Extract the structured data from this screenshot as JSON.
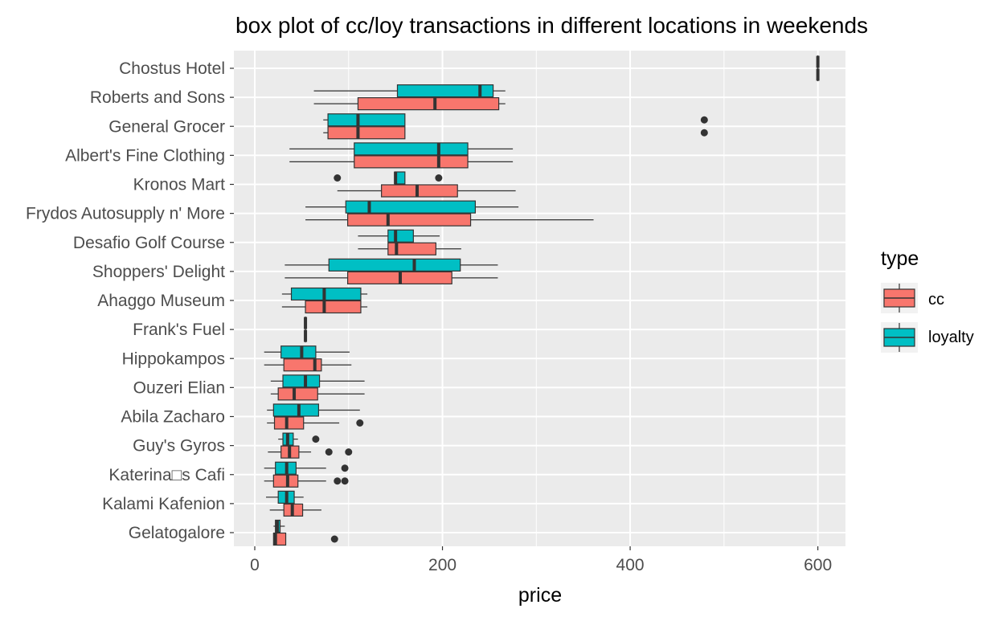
{
  "chart_data": {
    "type": "boxplot",
    "orientation": "horizontal",
    "title": "box plot of cc/loy transactions in different locations in weekends",
    "xlabel": "price",
    "ylabel": "",
    "xlim": [
      -5,
      630
    ],
    "x_ticks": [
      0,
      200,
      400,
      600
    ],
    "grid": true,
    "legend": {
      "title": "type",
      "position": "right"
    },
    "series": [
      {
        "name": "cc",
        "color": "#F8766D"
      },
      {
        "name": "loyalty",
        "color": "#00BFC4"
      }
    ],
    "categories": [
      "Chostus Hotel",
      "Roberts and Sons",
      "General Grocer",
      "Albert's Fine Clothing",
      "Kronos Mart",
      "Frydos Autosupply n' More",
      "Desafio Golf Course",
      "Shoppers' Delight",
      "Ahaggo Museum",
      "Frank's Fuel",
      "Hippokampos",
      "Ouzeri Elian",
      "Abila Zacharo",
      "Guy's Gyros",
      "Katerina□s Cafi",
      "Kalami Kafenion",
      "Gelatogalore"
    ],
    "boxes": [
      {
        "category": "Chostus Hotel",
        "series": "cc",
        "min": 600,
        "q1": 600,
        "median": 600,
        "q3": 600,
        "max": 600,
        "outliers": []
      },
      {
        "category": "Chostus Hotel",
        "series": "loyalty",
        "min": 600,
        "q1": 600,
        "median": 600,
        "q3": 600,
        "max": 600,
        "outliers": []
      },
      {
        "category": "Roberts and Sons",
        "series": "cc",
        "min": 63,
        "q1": 110,
        "median": 192,
        "q3": 260,
        "max": 267,
        "outliers": []
      },
      {
        "category": "Roberts and Sons",
        "series": "loyalty",
        "min": 63,
        "q1": 152,
        "median": 240,
        "q3": 254,
        "max": 267,
        "outliers": []
      },
      {
        "category": "General Grocer",
        "series": "cc",
        "min": 73,
        "q1": 78,
        "median": 110,
        "q3": 160,
        "max": 160,
        "outliers": [
          479
        ]
      },
      {
        "category": "General Grocer",
        "series": "loyalty",
        "min": 73,
        "q1": 78,
        "median": 110,
        "q3": 160,
        "max": 160,
        "outliers": [
          479
        ]
      },
      {
        "category": "Albert's Fine Clothing",
        "series": "cc",
        "min": 37,
        "q1": 106,
        "median": 196,
        "q3": 227,
        "max": 275,
        "outliers": []
      },
      {
        "category": "Albert's Fine Clothing",
        "series": "loyalty",
        "min": 37,
        "q1": 106,
        "median": 196,
        "q3": 227,
        "max": 275,
        "outliers": []
      },
      {
        "category": "Kronos Mart",
        "series": "cc",
        "min": 88,
        "q1": 135,
        "median": 173,
        "q3": 216,
        "max": 278,
        "outliers": []
      },
      {
        "category": "Kronos Mart",
        "series": "loyalty",
        "min": 149,
        "q1": 149,
        "median": 150,
        "q3": 160,
        "max": 160,
        "outliers": [
          88,
          196
        ]
      },
      {
        "category": "Frydos Autosupply n' More",
        "series": "cc",
        "min": 54,
        "q1": 99,
        "median": 142,
        "q3": 230,
        "max": 361,
        "outliers": []
      },
      {
        "category": "Frydos Autosupply n' More",
        "series": "loyalty",
        "min": 54,
        "q1": 97,
        "median": 122,
        "q3": 235,
        "max": 281,
        "outliers": []
      },
      {
        "category": "Desafio Golf Course",
        "series": "cc",
        "min": 110,
        "q1": 142,
        "median": 151,
        "q3": 193,
        "max": 220,
        "outliers": []
      },
      {
        "category": "Desafio Golf Course",
        "series": "loyalty",
        "min": 110,
        "q1": 142,
        "median": 150,
        "q3": 169,
        "max": 197,
        "outliers": []
      },
      {
        "category": "Shoppers' Delight",
        "series": "cc",
        "min": 32,
        "q1": 99,
        "median": 155,
        "q3": 210,
        "max": 259,
        "outliers": []
      },
      {
        "category": "Shoppers' Delight",
        "series": "loyalty",
        "min": 32,
        "q1": 79,
        "median": 170,
        "q3": 219,
        "max": 259,
        "outliers": []
      },
      {
        "category": "Ahaggo Museum",
        "series": "cc",
        "min": 29,
        "q1": 54,
        "median": 74,
        "q3": 113,
        "max": 120,
        "outliers": []
      },
      {
        "category": "Ahaggo Museum",
        "series": "loyalty",
        "min": 29,
        "q1": 39,
        "median": 74,
        "q3": 113,
        "max": 120,
        "outliers": []
      },
      {
        "category": "Frank's Fuel",
        "series": "cc",
        "min": 54,
        "q1": 54,
        "median": 54,
        "q3": 54,
        "max": 54,
        "outliers": []
      },
      {
        "category": "Frank's Fuel",
        "series": "loyalty",
        "min": 54,
        "q1": 54,
        "median": 54,
        "q3": 54,
        "max": 54,
        "outliers": []
      },
      {
        "category": "Hippokampos",
        "series": "cc",
        "min": 10,
        "q1": 31,
        "median": 64,
        "q3": 71,
        "max": 103,
        "outliers": []
      },
      {
        "category": "Hippokampos",
        "series": "loyalty",
        "min": 10,
        "q1": 28,
        "median": 50,
        "q3": 65,
        "max": 101,
        "outliers": []
      },
      {
        "category": "Ouzeri Elian",
        "series": "cc",
        "min": 17,
        "q1": 25,
        "median": 42,
        "q3": 67,
        "max": 117,
        "outliers": []
      },
      {
        "category": "Ouzeri Elian",
        "series": "loyalty",
        "min": 17,
        "q1": 30,
        "median": 54,
        "q3": 69,
        "max": 117,
        "outliers": []
      },
      {
        "category": "Abila Zacharo",
        "series": "cc",
        "min": 13,
        "q1": 21,
        "median": 34,
        "q3": 52,
        "max": 90,
        "outliers": [
          112
        ]
      },
      {
        "category": "Abila Zacharo",
        "series": "loyalty",
        "min": 13,
        "q1": 20,
        "median": 47,
        "q3": 68,
        "max": 112,
        "outliers": []
      },
      {
        "category": "Guy's Gyros",
        "series": "cc",
        "min": 14,
        "q1": 28,
        "median": 37,
        "q3": 47,
        "max": 60,
        "outliers": [
          79,
          100
        ]
      },
      {
        "category": "Guy's Gyros",
        "series": "loyalty",
        "min": 25,
        "q1": 30,
        "median": 35,
        "q3": 41,
        "max": 46,
        "outliers": [
          65
        ]
      },
      {
        "category": "Katerina□s Cafi",
        "series": "cc",
        "min": 10,
        "q1": 20,
        "median": 35,
        "q3": 46,
        "max": 76,
        "outliers": [
          88,
          96
        ]
      },
      {
        "category": "Katerina□s Cafi",
        "series": "loyalty",
        "min": 10,
        "q1": 22,
        "median": 34,
        "q3": 44,
        "max": 76,
        "outliers": [
          96
        ]
      },
      {
        "category": "Kalami Kafenion",
        "series": "cc",
        "min": 16,
        "q1": 31,
        "median": 40,
        "q3": 51,
        "max": 71,
        "outliers": []
      },
      {
        "category": "Kalami Kafenion",
        "series": "loyalty",
        "min": 12,
        "q1": 25,
        "median": 34,
        "q3": 42,
        "max": 52,
        "outliers": []
      },
      {
        "category": "Gelatogalore",
        "series": "cc",
        "min": 20,
        "q1": 20,
        "median": 22,
        "q3": 33,
        "max": 33,
        "outliers": [
          85
        ]
      },
      {
        "category": "Gelatogalore",
        "series": "loyalty",
        "min": 20,
        "q1": 22,
        "median": 24,
        "q3": 27,
        "max": 32,
        "outliers": []
      }
    ]
  }
}
